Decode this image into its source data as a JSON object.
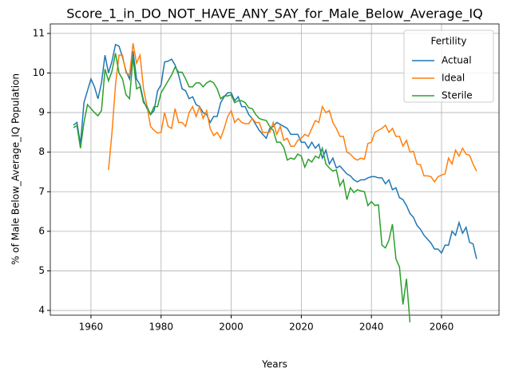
{
  "chart_data": {
    "type": "line",
    "title": "Score_1_in_DO_NOT_HAVE_ANY_SAY_for_Male_Below_Average_IQ",
    "xlabel": "Years",
    "ylabel": "% of Male Below_Average_IQ Population",
    "legend_title": "Fertility",
    "legend": "upper right",
    "grid": true,
    "xlim": [
      1948.4,
      2076.4
    ],
    "ylim": [
      3.88,
      11.24
    ],
    "xticks": [
      1960,
      1980,
      2000,
      2020,
      2040,
      2060
    ],
    "yticks": [
      4,
      5,
      6,
      7,
      8,
      9,
      10,
      11
    ],
    "x": [
      1955,
      1956,
      1957,
      1958,
      1959,
      1960,
      1961,
      1962,
      1963,
      1964,
      1965,
      1966,
      1967,
      1968,
      1969,
      1970,
      1971,
      1972,
      1973,
      1974,
      1975,
      1976,
      1977,
      1978,
      1979,
      1980,
      1981,
      1982,
      1983,
      1984,
      1985,
      1986,
      1987,
      1988,
      1989,
      1990,
      1991,
      1992,
      1993,
      1994,
      1995,
      1996,
      1997,
      1998,
      1999,
      2000,
      2001,
      2002,
      2003,
      2004,
      2005,
      2006,
      2007,
      2008,
      2009,
      2010,
      2011,
      2012,
      2013,
      2014,
      2015,
      2016,
      2017,
      2018,
      2019,
      2020,
      2021,
      2022,
      2023,
      2024,
      2025,
      2026,
      2027,
      2028,
      2029,
      2030,
      2031,
      2032,
      2033,
      2034,
      2035,
      2036,
      2037,
      2038,
      2039,
      2040,
      2041,
      2042,
      2043,
      2044,
      2045,
      2046,
      2047,
      2048,
      2049,
      2050,
      2051,
      2052,
      2053,
      2054,
      2055,
      2056,
      2057,
      2058,
      2059,
      2060,
      2061,
      2062,
      2063,
      2064,
      2065,
      2066,
      2067,
      2068,
      2069,
      2070
    ],
    "series": [
      {
        "name": "Actual",
        "color": "#1f77b4",
        "values": [
          8.68,
          8.75,
          8.2,
          9.25,
          9.55,
          9.85,
          9.65,
          9.35,
          9.75,
          10.45,
          10.0,
          10.3,
          10.72,
          10.68,
          10.4,
          10.05,
          9.85,
          10.55,
          9.85,
          9.7,
          9.3,
          9.1,
          8.95,
          9.05,
          9.55,
          9.7,
          10.28,
          10.3,
          10.35,
          10.2,
          9.95,
          9.6,
          9.55,
          9.35,
          9.4,
          9.2,
          9.15,
          9.0,
          8.95,
          8.75,
          8.9,
          8.9,
          9.25,
          9.4,
          9.5,
          9.5,
          9.3,
          9.4,
          9.15,
          9.15,
          8.95,
          8.85,
          8.7,
          8.55,
          8.45,
          8.35,
          8.6,
          8.65,
          8.75,
          8.7,
          8.65,
          8.6,
          8.45,
          8.45,
          8.45,
          8.25,
          8.25,
          8.1,
          8.25,
          8.1,
          8.2,
          7.85,
          8.05,
          7.7,
          7.85,
          7.6,
          7.65,
          7.55,
          7.45,
          7.4,
          7.3,
          7.25,
          7.3,
          7.3,
          7.35,
          7.38,
          7.38,
          7.35,
          7.35,
          7.2,
          7.3,
          7.05,
          7.1,
          6.85,
          6.8,
          6.65,
          6.45,
          6.35,
          6.15,
          6.05,
          5.9,
          5.8,
          5.7,
          5.55,
          5.55,
          5.45,
          5.65,
          5.65,
          6.0,
          5.9,
          6.22,
          5.95,
          6.1,
          5.72,
          5.68,
          5.3
        ]
      },
      {
        "name": "Ideal",
        "color": "#ff7f0e",
        "values": [
          null,
          null,
          null,
          null,
          null,
          null,
          null,
          null,
          null,
          null,
          7.55,
          8.5,
          9.7,
          10.45,
          10.45,
          10.0,
          9.95,
          10.75,
          10.25,
          10.45,
          9.6,
          9.15,
          8.65,
          8.55,
          8.48,
          8.5,
          9.0,
          8.65,
          8.6,
          9.1,
          8.75,
          8.75,
          8.65,
          9.0,
          9.15,
          8.9,
          9.15,
          8.85,
          9.05,
          8.6,
          8.42,
          8.5,
          8.35,
          8.6,
          8.9,
          9.05,
          8.75,
          8.85,
          8.75,
          8.72,
          8.72,
          8.85,
          8.75,
          8.75,
          8.5,
          8.5,
          8.5,
          8.75,
          8.45,
          8.65,
          8.3,
          8.35,
          8.15,
          8.15,
          8.3,
          8.35,
          8.45,
          8.4,
          8.6,
          8.8,
          8.75,
          9.15,
          9.0,
          9.05,
          8.75,
          8.6,
          8.4,
          8.4,
          8.0,
          7.95,
          7.85,
          7.8,
          7.85,
          7.82,
          8.22,
          8.25,
          8.5,
          8.55,
          8.6,
          8.68,
          8.5,
          8.6,
          8.4,
          8.4,
          8.15,
          8.3,
          8.0,
          8.02,
          7.7,
          7.68,
          7.4,
          7.4,
          7.38,
          7.25,
          7.38,
          7.42,
          7.45,
          7.85,
          7.7,
          8.05,
          7.9,
          8.1,
          7.95,
          7.92,
          7.7,
          7.52
        ]
      },
      {
        "name": "Sterile",
        "color": "#2ca02c",
        "values": [
          8.62,
          8.67,
          8.1,
          8.75,
          9.2,
          9.1,
          9.0,
          8.92,
          9.05,
          10.1,
          9.8,
          10.05,
          10.5,
          10.0,
          9.85,
          9.45,
          9.35,
          10.4,
          9.6,
          9.65,
          9.25,
          9.15,
          8.95,
          9.15,
          9.15,
          9.5,
          9.65,
          9.8,
          9.95,
          10.15,
          10.02,
          10.02,
          9.85,
          9.65,
          9.65,
          9.75,
          9.75,
          9.65,
          9.75,
          9.8,
          9.75,
          9.6,
          9.35,
          9.42,
          9.42,
          9.45,
          9.25,
          9.3,
          9.3,
          9.25,
          9.12,
          9.1,
          8.95,
          8.85,
          8.82,
          8.8,
          8.65,
          8.55,
          8.25,
          8.25,
          8.12,
          7.8,
          7.85,
          7.82,
          7.95,
          7.9,
          7.62,
          7.82,
          7.75,
          7.9,
          7.85,
          8.1,
          7.7,
          7.6,
          7.52,
          7.55,
          7.15,
          7.3,
          6.8,
          7.1,
          6.98,
          7.05,
          7.02,
          7.0,
          6.65,
          6.75,
          6.65,
          6.67,
          5.65,
          5.58,
          5.78,
          6.18,
          5.3,
          5.1,
          4.15,
          4.8,
          3.7,
          null,
          null,
          null,
          null,
          null,
          null,
          null,
          null,
          null,
          null,
          null,
          null,
          null,
          null,
          null,
          null,
          null,
          null,
          null
        ]
      }
    ]
  }
}
